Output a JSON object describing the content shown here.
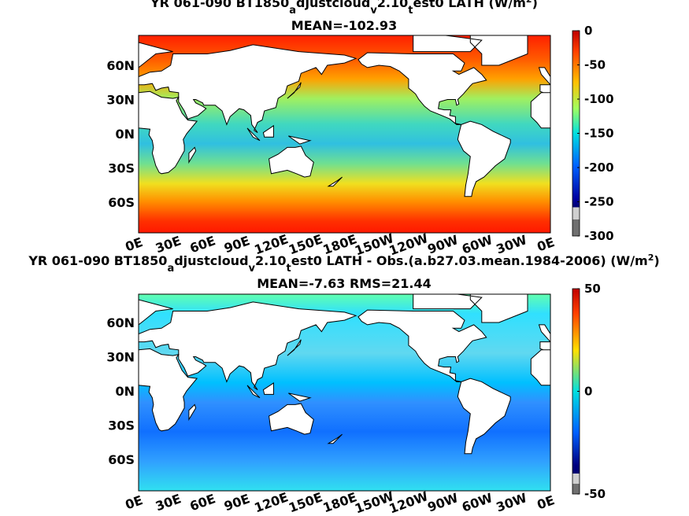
{
  "panels": [
    {
      "title_parts": [
        "YR 061-090 BT1850",
        "a",
        "djustcloud",
        "v",
        "2.10",
        "t",
        "est0  LATH (W/m",
        "2",
        ")"
      ],
      "subtitle": "MEAN=-102.93",
      "lat_labels": [
        "60N",
        "30N",
        "0N",
        "30S",
        "60S"
      ],
      "lon_labels": [
        "0E",
        "30E",
        "60E",
        "90E",
        "120E",
        "150E",
        "180E",
        "150W",
        "120W",
        "90W",
        "60W",
        "30W",
        "0E"
      ],
      "colorbar": {
        "lim": [
          -300,
          0
        ],
        "ticks": [
          0,
          -50,
          -100,
          -150,
          -200,
          -250,
          -300
        ]
      }
    },
    {
      "title_parts": [
        "YR 061-090 BT1850",
        "a",
        "djustcloud",
        "v",
        "2.10",
        "t",
        "est0  LATH - Obs.(a.b27.03.mean.1984-2006) (W/m",
        "2",
        ")"
      ],
      "subtitle": "MEAN=-7.63 RMS=21.44",
      "lat_labels": [
        "60N",
        "30N",
        "0N",
        "30S",
        "60S"
      ],
      "lon_labels": [
        "0E",
        "30E",
        "60E",
        "90E",
        "120E",
        "150E",
        "180E",
        "150W",
        "120W",
        "90W",
        "60W",
        "30W",
        "0E"
      ],
      "colorbar": {
        "lim": [
          -50,
          50
        ],
        "ticks": [
          50,
          0,
          -50
        ]
      }
    }
  ]
}
